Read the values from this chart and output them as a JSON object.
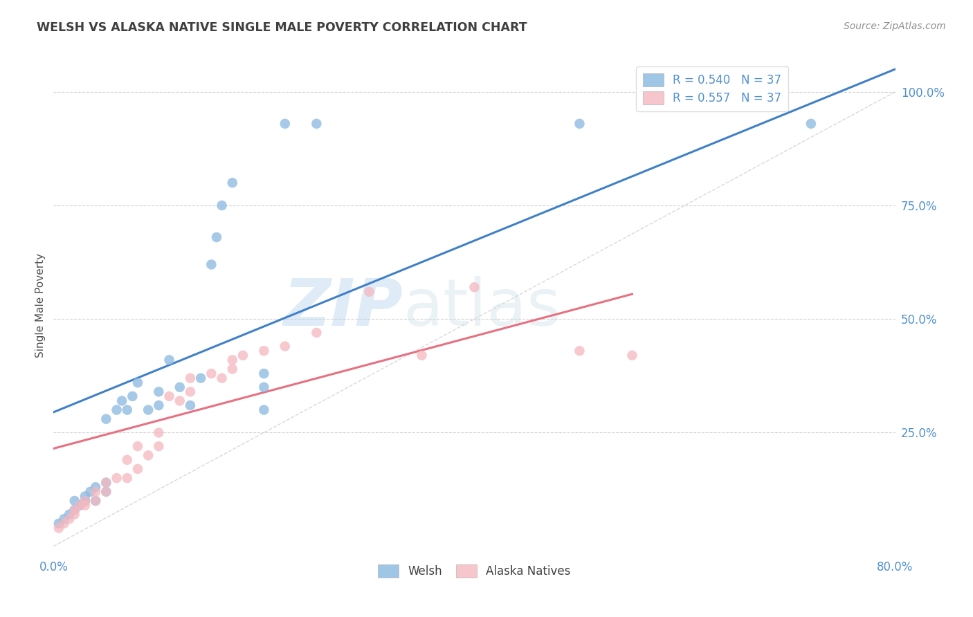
{
  "title": "WELSH VS ALASKA NATIVE SINGLE MALE POVERTY CORRELATION CHART",
  "source": "Source: ZipAtlas.com",
  "ylabel": "Single Male Poverty",
  "xlabel_ticks": [
    "0.0%",
    "80.0%"
  ],
  "ytick_labels": [
    "100.0%",
    "75.0%",
    "50.0%",
    "25.0%"
  ],
  "ytick_positions": [
    1.0,
    0.75,
    0.5,
    0.25
  ],
  "xlim": [
    0.0,
    0.8
  ],
  "ylim": [
    -0.02,
    1.08
  ],
  "legend_blue_r": "R = 0.540",
  "legend_blue_n": "N = 37",
  "legend_pink_r": "R = 0.557",
  "legend_pink_n": "N = 37",
  "blue_scatter_x": [
    0.005,
    0.01,
    0.015,
    0.02,
    0.02,
    0.025,
    0.03,
    0.03,
    0.035,
    0.04,
    0.04,
    0.05,
    0.05,
    0.05,
    0.06,
    0.065,
    0.07,
    0.075,
    0.08,
    0.09,
    0.1,
    0.1,
    0.11,
    0.12,
    0.13,
    0.14,
    0.15,
    0.155,
    0.16,
    0.17,
    0.2,
    0.2,
    0.22,
    0.25,
    0.5,
    0.72,
    0.2
  ],
  "blue_scatter_y": [
    0.05,
    0.06,
    0.07,
    0.08,
    0.1,
    0.09,
    0.1,
    0.11,
    0.12,
    0.1,
    0.13,
    0.12,
    0.14,
    0.28,
    0.3,
    0.32,
    0.3,
    0.33,
    0.36,
    0.3,
    0.31,
    0.34,
    0.41,
    0.35,
    0.31,
    0.37,
    0.62,
    0.68,
    0.75,
    0.8,
    0.35,
    0.38,
    0.93,
    0.93,
    0.93,
    0.93,
    0.3
  ],
  "pink_scatter_x": [
    0.005,
    0.01,
    0.015,
    0.02,
    0.02,
    0.025,
    0.03,
    0.03,
    0.04,
    0.04,
    0.05,
    0.05,
    0.06,
    0.07,
    0.07,
    0.08,
    0.08,
    0.09,
    0.1,
    0.1,
    0.11,
    0.12,
    0.13,
    0.13,
    0.15,
    0.16,
    0.17,
    0.17,
    0.18,
    0.2,
    0.22,
    0.25,
    0.3,
    0.35,
    0.4,
    0.5,
    0.55
  ],
  "pink_scatter_y": [
    0.04,
    0.05,
    0.06,
    0.07,
    0.08,
    0.09,
    0.09,
    0.1,
    0.1,
    0.12,
    0.12,
    0.14,
    0.15,
    0.15,
    0.19,
    0.17,
    0.22,
    0.2,
    0.22,
    0.25,
    0.33,
    0.32,
    0.34,
    0.37,
    0.38,
    0.37,
    0.39,
    0.41,
    0.42,
    0.43,
    0.44,
    0.47,
    0.56,
    0.42,
    0.57,
    0.43,
    0.42
  ],
  "blue_line_x": [
    0.0,
    0.8
  ],
  "blue_line_y": [
    0.295,
    1.05
  ],
  "pink_line_x": [
    0.0,
    0.55
  ],
  "pink_line_y": [
    0.215,
    0.555
  ],
  "diag_line_x": [
    0.0,
    0.8
  ],
  "diag_line_y": [
    0.0,
    1.0
  ],
  "blue_color": "#89b8e0",
  "pink_color": "#f5b8c0",
  "blue_line_color": "#4080c8",
  "pink_line_color": "#e87080",
  "diag_line_color": "#c8c8c8",
  "watermark_zip": "ZIP",
  "watermark_atlas": "atlas",
  "background_color": "#ffffff",
  "grid_color": "#c8c8c8",
  "title_color": "#404040",
  "ylabel_color": "#505050",
  "tick_color": "#5090d0",
  "source_color": "#909090"
}
